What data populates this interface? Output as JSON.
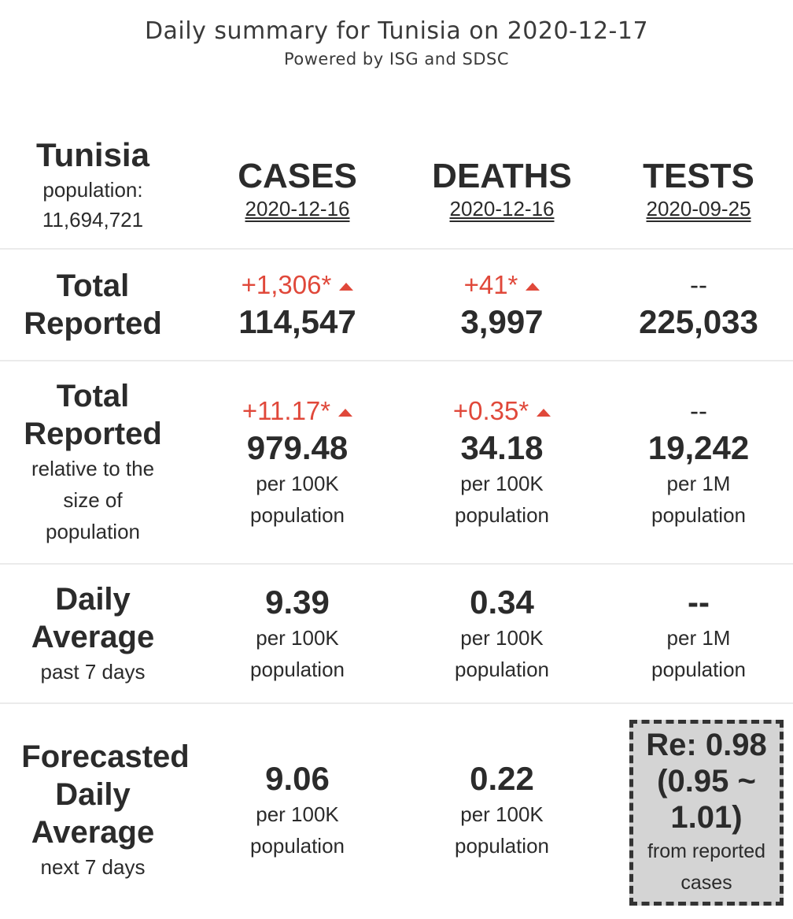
{
  "header": {
    "title": "Daily summary for Tunisia on 2020-12-17",
    "subtitle": "Powered by ISG and SDSC"
  },
  "country": {
    "name": "Tunisia",
    "population_label": "population:",
    "population": "11,694,721"
  },
  "columns": [
    {
      "title": "CASES",
      "date": "2020-12-16"
    },
    {
      "title": "DEATHS",
      "date": "2020-12-16"
    },
    {
      "title": "TESTS",
      "date": "2020-09-25"
    }
  ],
  "rows": {
    "total_reported": {
      "label_line1": "Total",
      "label_line2": "Reported",
      "cases": {
        "delta": "+1,306*",
        "value": "114,547"
      },
      "deaths": {
        "delta": "+41*",
        "value": "3,997"
      },
      "tests": {
        "delta": "--",
        "value": "225,033"
      }
    },
    "relative": {
      "label_line1": "Total",
      "label_line2": "Reported",
      "sub_line1": "relative to the",
      "sub_line2": "size of",
      "sub_line3": "population",
      "cases": {
        "delta": "+11.17*",
        "value": "979.48",
        "unit1": "per 100K",
        "unit2": "population"
      },
      "deaths": {
        "delta": "+0.35*",
        "value": "34.18",
        "unit1": "per 100K",
        "unit2": "population"
      },
      "tests": {
        "delta": "--",
        "value": "19,242",
        "unit1": "per 1M",
        "unit2": "population"
      }
    },
    "daily_average": {
      "label_line1": "Daily",
      "label_line2": "Average",
      "sub": "past 7 days",
      "cases": {
        "value": "9.39",
        "unit1": "per 100K",
        "unit2": "population"
      },
      "deaths": {
        "value": "0.34",
        "unit1": "per 100K",
        "unit2": "population"
      },
      "tests": {
        "value": "--",
        "unit1": "per 1M",
        "unit2": "population"
      }
    },
    "forecast": {
      "label_line1": "Forecasted",
      "label_line2": "Daily",
      "label_line3": "Average",
      "sub": "next 7 days",
      "cases": {
        "value": "9.06",
        "unit1": "per 100K",
        "unit2": "population"
      },
      "deaths": {
        "value": "0.22",
        "unit1": "per 100K",
        "unit2": "population"
      },
      "re": {
        "value": "Re: 0.98",
        "range_line1": "(0.95 ~",
        "range_line2": "1.01)",
        "note_line1": "from reported",
        "note_line2": "cases"
      }
    }
  },
  "colors": {
    "increase": "#e0483a",
    "text": "#2b2b2b",
    "re_box_bg": "#d4d4d4",
    "separator": "#ebebeb"
  },
  "icons": {
    "increase": "triangle-up-icon"
  }
}
